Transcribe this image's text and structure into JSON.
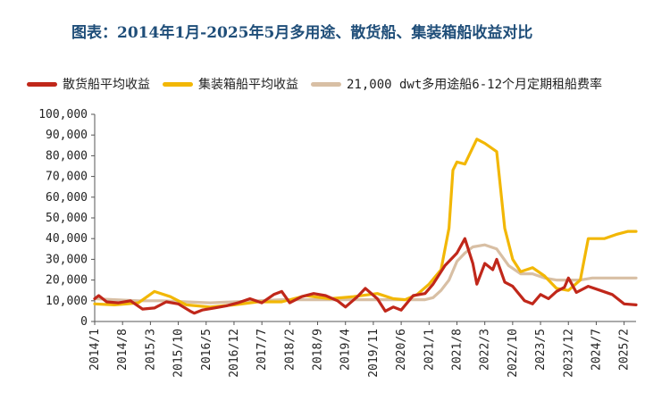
{
  "title": "图表：2014年1月-2025年5月多用途、散货船、集装箱船收益对比",
  "chart_data": {
    "type": "line",
    "x_tick_labels": [
      "2014/1",
      "2014/8",
      "2015/3",
      "2015/10",
      "2016/5",
      "2016/12",
      "2017/7",
      "2018/2",
      "2018/9",
      "2019/4",
      "2019/11",
      "2020/6",
      "2021/1",
      "2021/8",
      "2022/3",
      "2022/10",
      "2023/5",
      "2023/12",
      "2024/7",
      "2025/2"
    ],
    "y_tick_labels": [
      "0",
      "10,000",
      "20,000",
      "30,000",
      "40,000",
      "50,000",
      "60,000",
      "70,000",
      "80,000",
      "90,000",
      "100,000"
    ],
    "ylim": [
      0,
      100000
    ],
    "x_start": "2014-01",
    "x_end": "2025-05",
    "grid": false,
    "legend_position": "top",
    "series": [
      {
        "name": "散货船平均收益",
        "color": "#c0271a",
        "points": [
          [
            "2014-01",
            11000
          ],
          [
            "2014-02",
            12500
          ],
          [
            "2014-04",
            9500
          ],
          [
            "2014-07",
            9000
          ],
          [
            "2014-10",
            10000
          ],
          [
            "2015-01",
            6000
          ],
          [
            "2015-04",
            6500
          ],
          [
            "2015-07",
            9500
          ],
          [
            "2015-10",
            8500
          ],
          [
            "2016-01",
            5000
          ],
          [
            "2016-02",
            4000
          ],
          [
            "2016-04",
            5500
          ],
          [
            "2016-07",
            6500
          ],
          [
            "2016-10",
            7500
          ],
          [
            "2017-01",
            9000
          ],
          [
            "2017-04",
            11000
          ],
          [
            "2017-07",
            9000
          ],
          [
            "2017-10",
            13000
          ],
          [
            "2017-12",
            14500
          ],
          [
            "2018-02",
            9000
          ],
          [
            "2018-05",
            12000
          ],
          [
            "2018-08",
            13500
          ],
          [
            "2018-11",
            12500
          ],
          [
            "2019-02",
            10000
          ],
          [
            "2019-04",
            7000
          ],
          [
            "2019-07",
            12000
          ],
          [
            "2019-09",
            16000
          ],
          [
            "2019-12",
            11000
          ],
          [
            "2020-02",
            5000
          ],
          [
            "2020-04",
            7000
          ],
          [
            "2020-06",
            5500
          ],
          [
            "2020-09",
            12500
          ],
          [
            "2020-12",
            13500
          ],
          [
            "2021-02",
            18000
          ],
          [
            "2021-05",
            27000
          ],
          [
            "2021-08",
            33000
          ],
          [
            "2021-10",
            40000
          ],
          [
            "2021-12",
            28000
          ],
          [
            "2022-01",
            18000
          ],
          [
            "2022-03",
            28000
          ],
          [
            "2022-05",
            25000
          ],
          [
            "2022-06",
            30000
          ],
          [
            "2022-08",
            19000
          ],
          [
            "2022-10",
            17000
          ],
          [
            "2023-01",
            10000
          ],
          [
            "2023-03",
            8500
          ],
          [
            "2023-05",
            13000
          ],
          [
            "2023-07",
            11000
          ],
          [
            "2023-09",
            14500
          ],
          [
            "2023-11",
            16500
          ],
          [
            "2023-12",
            21000
          ],
          [
            "2024-02",
            14000
          ],
          [
            "2024-05",
            17000
          ],
          [
            "2024-08",
            15000
          ],
          [
            "2024-11",
            13000
          ],
          [
            "2025-02",
            8500
          ],
          [
            "2025-05",
            8000
          ]
        ]
      },
      {
        "name": "集装箱船平均收益",
        "color": "#f2b705",
        "points": [
          [
            "2014-01",
            8500
          ],
          [
            "2014-06",
            8000
          ],
          [
            "2014-12",
            9000
          ],
          [
            "2015-04",
            14500
          ],
          [
            "2015-08",
            12000
          ],
          [
            "2015-12",
            8000
          ],
          [
            "2016-06",
            7000
          ],
          [
            "2016-12",
            8000
          ],
          [
            "2017-06",
            9500
          ],
          [
            "2017-12",
            9500
          ],
          [
            "2018-06",
            12500
          ],
          [
            "2018-12",
            11000
          ],
          [
            "2019-06",
            12000
          ],
          [
            "2019-12",
            13500
          ],
          [
            "2020-04",
            11000
          ],
          [
            "2020-07",
            10500
          ],
          [
            "2020-10",
            13000
          ],
          [
            "2021-01",
            18000
          ],
          [
            "2021-04",
            25000
          ],
          [
            "2021-06",
            45000
          ],
          [
            "2021-07",
            73000
          ],
          [
            "2021-08",
            77000
          ],
          [
            "2021-10",
            76000
          ],
          [
            "2021-12",
            84000
          ],
          [
            "2022-01",
            88000
          ],
          [
            "2022-03",
            86000
          ],
          [
            "2022-06",
            82000
          ],
          [
            "2022-08",
            45000
          ],
          [
            "2022-10",
            30000
          ],
          [
            "2022-12",
            24000
          ],
          [
            "2023-03",
            26000
          ],
          [
            "2023-06",
            22000
          ],
          [
            "2023-09",
            16000
          ],
          [
            "2023-12",
            15000
          ],
          [
            "2024-03",
            20000
          ],
          [
            "2024-05",
            40000
          ],
          [
            "2024-09",
            40000
          ],
          [
            "2024-12",
            42000
          ],
          [
            "2025-03",
            43500
          ],
          [
            "2025-05",
            43500
          ]
        ]
      },
      {
        "name": "21,000 dwt多用途船6-12个月定期租船费率",
        "color": "#d8bfa4",
        "points": [
          [
            "2014-01",
            11000
          ],
          [
            "2014-06",
            10500
          ],
          [
            "2014-12",
            10000
          ],
          [
            "2015-06",
            10000
          ],
          [
            "2015-12",
            9500
          ],
          [
            "2016-06",
            9000
          ],
          [
            "2016-12",
            9500
          ],
          [
            "2017-06",
            10000
          ],
          [
            "2017-12",
            10500
          ],
          [
            "2018-06",
            10500
          ],
          [
            "2018-12",
            10500
          ],
          [
            "2019-06",
            10500
          ],
          [
            "2019-12",
            10500
          ],
          [
            "2020-06",
            10500
          ],
          [
            "2020-12",
            10500
          ],
          [
            "2021-02",
            11500
          ],
          [
            "2021-04",
            15000
          ],
          [
            "2021-06",
            20000
          ],
          [
            "2021-08",
            29000
          ],
          [
            "2021-10",
            33000
          ],
          [
            "2021-12",
            36000
          ],
          [
            "2022-03",
            37000
          ],
          [
            "2022-06",
            35000
          ],
          [
            "2022-09",
            27000
          ],
          [
            "2022-12",
            23000
          ],
          [
            "2023-03",
            23000
          ],
          [
            "2023-06",
            21000
          ],
          [
            "2023-09",
            20000
          ],
          [
            "2023-12",
            20000
          ],
          [
            "2024-03",
            20000
          ],
          [
            "2024-06",
            21000
          ],
          [
            "2024-09",
            21000
          ],
          [
            "2024-12",
            21000
          ],
          [
            "2025-05",
            21000
          ]
        ]
      }
    ]
  }
}
